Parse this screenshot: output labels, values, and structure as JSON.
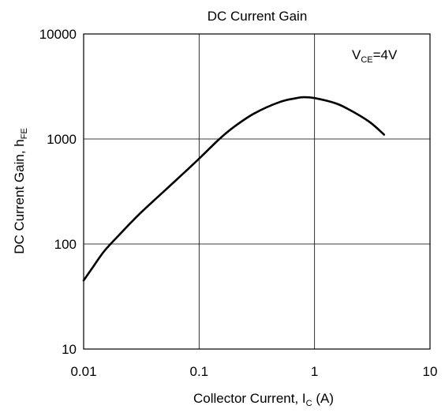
{
  "chart_data": {
    "type": "line",
    "title": "DC Current Gain",
    "xlabel": {
      "main": "Collector Current, I",
      "sub": "C",
      "suffix": " (A)"
    },
    "ylabel": {
      "main": "DC Current Gain, h",
      "sub": "FE"
    },
    "x_scale": "log",
    "y_scale": "log",
    "xlim": [
      0.01,
      10
    ],
    "ylim": [
      10,
      10000
    ],
    "x_ticks": [
      0.01,
      0.1,
      1,
      10
    ],
    "x_tick_labels": [
      "0.01",
      "0.1",
      "1",
      "10"
    ],
    "y_ticks": [
      10,
      100,
      1000,
      10000
    ],
    "y_tick_labels": [
      "10",
      "100",
      "1000",
      "10000"
    ],
    "grid": true,
    "annotation": {
      "main": "V",
      "sub": "CE",
      "suffix": "=4V"
    },
    "series": [
      {
        "x": [
          0.01,
          0.012,
          0.015,
          0.02,
          0.03,
          0.05,
          0.07,
          0.1,
          0.15,
          0.2,
          0.3,
          0.5,
          0.7,
          0.8,
          1.0,
          1.5,
          2.0,
          3.0,
          4.0
        ],
        "y": [
          45,
          60,
          85,
          120,
          190,
          320,
          450,
          650,
          1000,
          1300,
          1750,
          2250,
          2450,
          2500,
          2450,
          2200,
          1900,
          1450,
          1100
        ]
      }
    ]
  }
}
